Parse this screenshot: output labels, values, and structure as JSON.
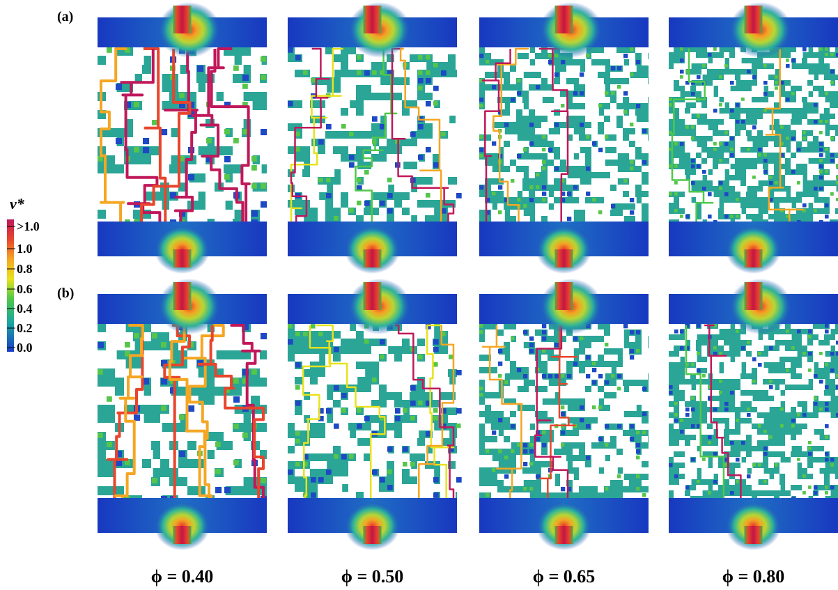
{
  "row_labels": [
    "(a)",
    "(b)"
  ],
  "colorbar": {
    "title": "v*",
    "ticks": [
      ">1.0",
      "1.0",
      "0.8",
      "0.6",
      "0.4",
      "0.2",
      "0.0"
    ]
  },
  "porosity_labels": [
    "ϕ = 0.40",
    "ϕ = 0.50",
    "ϕ = 0.65",
    "ϕ = 0.80"
  ]
}
